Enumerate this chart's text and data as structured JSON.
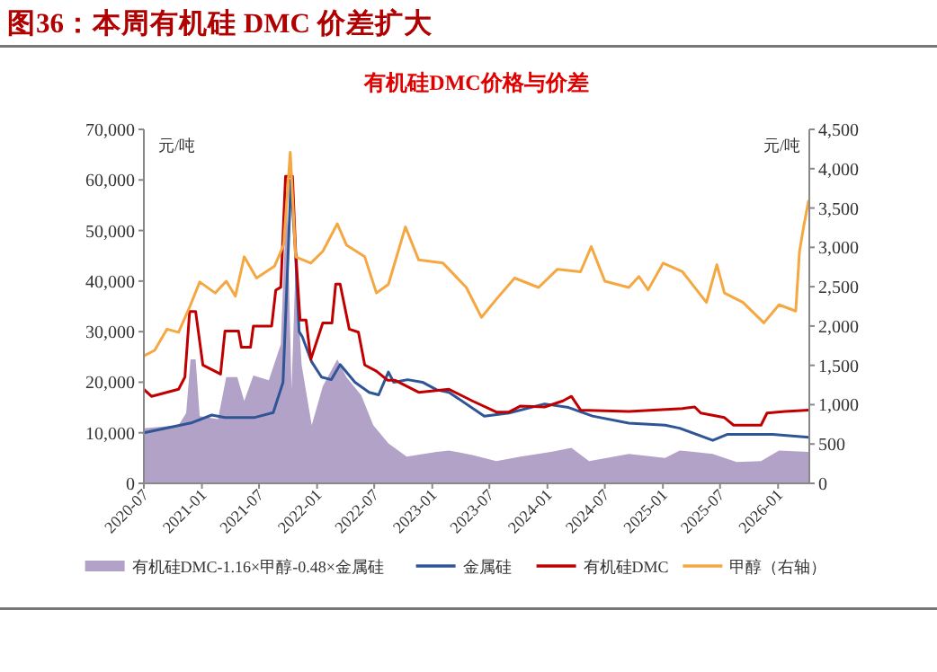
{
  "chart_data": {
    "type": "line",
    "title": "图36：本周有机硅 DMC 价差扩大",
    "subtitle": "有机硅DMC价格与价差",
    "ylabel": "元/吨",
    "y2label": "元/吨",
    "xlim": [
      "2020-07-01",
      "2026-04-10"
    ],
    "xticks": [
      {
        "value": "2020-07-01",
        "label": "2020-07"
      },
      {
        "value": "2021-01-01",
        "label": "2021-01"
      },
      {
        "value": "2021-07-01",
        "label": "2021-07"
      },
      {
        "value": "2022-01-01",
        "label": "2022-01"
      },
      {
        "value": "2022-07-01",
        "label": "2022-07"
      },
      {
        "value": "2023-01-01",
        "label": "2023-01"
      },
      {
        "value": "2023-07-01",
        "label": "2023-07"
      },
      {
        "value": "2024-01-01",
        "label": "2024-01"
      },
      {
        "value": "2024-07-01",
        "label": "2024-07"
      },
      {
        "value": "2025-01-01",
        "label": "2025-01"
      },
      {
        "value": "2025-07-01",
        "label": "2025-07"
      },
      {
        "value": "2026-01-01",
        "label": "2026-01"
      }
    ],
    "ylim": [
      0,
      70000
    ],
    "yticks": [
      0,
      {
        "value": 10000,
        "label": "10,000"
      },
      {
        "value": 20000,
        "label": "20,000"
      },
      {
        "value": 30000,
        "label": "30,000"
      },
      {
        "value": 40000,
        "label": "40,000"
      },
      {
        "value": 50000,
        "label": "50,000"
      },
      {
        "value": 60000,
        "label": "60,000"
      },
      {
        "value": 70000,
        "label": "70,000"
      }
    ],
    "y2lim": [
      0,
      4500
    ],
    "y2ticks": [
      0,
      500,
      {
        "value": 1000,
        "label": "1,000"
      },
      {
        "value": 1500,
        "label": "1,500"
      },
      {
        "value": 2000,
        "label": "2,000"
      },
      {
        "value": 2500,
        "label": "2,500"
      },
      {
        "value": 3000,
        "label": "3,000"
      },
      {
        "value": 3500,
        "label": "3,500"
      },
      {
        "value": 4000,
        "label": "4,000"
      },
      {
        "value": 4500,
        "label": "4,500"
      }
    ],
    "legend": "bottom",
    "grid": false,
    "series": [
      {
        "name": "有机硅DMC-1.16×甲醇-0.48×金属硅",
        "type": "area",
        "color": "#b3a2c7",
        "x": [
          "2020-07-01",
          "2020-10-19",
          "2020-11-12",
          "2020-11-26",
          "2020-12-12",
          "2020-12-25",
          "2021-02-21",
          "2021-03-19",
          "2021-04-23",
          "2021-05-15",
          "2021-06-13",
          "2021-08-01",
          "2021-09-08",
          "2021-09-27",
          "2021-10-12",
          "2021-10-25",
          "2021-11-13",
          "2021-12-15",
          "2022-01-19",
          "2022-03-06",
          "2022-04-04",
          "2022-05-21",
          "2022-06-28",
          "2022-08-15",
          "2022-10-12",
          "2023-01-15",
          "2023-02-23",
          "2023-05-08",
          "2023-07-23",
          "2023-10-08",
          "2024-01-12",
          "2024-03-17",
          "2024-05-12",
          "2024-09-15",
          "2025-01-08",
          "2025-02-23",
          "2025-06-08",
          "2025-08-23",
          "2025-11-08",
          "2026-01-04",
          "2026-04-08"
        ],
        "values": [
          10900,
          11500,
          13900,
          24500,
          24500,
          13300,
          12700,
          21000,
          21000,
          16300,
          21300,
          20400,
          27500,
          57800,
          18600,
          43500,
          23400,
          11500,
          19200,
          24500,
          21000,
          17400,
          11500,
          7900,
          5300,
          6200,
          6500,
          5600,
          4400,
          5300,
          6200,
          7000,
          4400,
          5800,
          5000,
          6500,
          5800,
          4200,
          4400,
          6500,
          6200
        ]
      },
      {
        "name": "金属硅",
        "type": "line",
        "color": "#2f5597",
        "x": [
          "2020-07-01",
          "2020-12-01",
          "2021-02-01",
          "2021-03-15",
          "2021-06-15",
          "2021-08-15",
          "2021-09-15",
          "2021-10-01",
          "2021-10-10",
          "2021-10-25",
          "2021-11-05",
          "2021-11-15",
          "2021-12-15",
          "2022-01-15",
          "2022-02-15",
          "2022-03-15",
          "2022-05-01",
          "2022-06-15",
          "2022-07-15",
          "2022-08-15",
          "2022-09-01",
          "2022-10-15",
          "2022-12-01",
          "2023-01-15",
          "2023-02-23",
          "2023-06-15",
          "2023-09-01",
          "2023-12-23",
          "2024-03-08",
          "2024-05-23",
          "2024-09-15",
          "2025-01-08",
          "2025-02-23",
          "2025-06-08",
          "2025-07-25",
          "2025-12-15",
          "2026-04-08"
        ],
        "values": [
          10000,
          12000,
          13500,
          13000,
          13000,
          14000,
          20000,
          45000,
          60000,
          45000,
          30000,
          29000,
          24000,
          21000,
          20500,
          23500,
          20000,
          18000,
          17500,
          22000,
          20000,
          20500,
          20000,
          18500,
          18000,
          13300,
          13900,
          15700,
          15000,
          13300,
          11900,
          11500,
          10900,
          8500,
          9700,
          9700,
          9100
        ]
      },
      {
        "name": "有机硅DMC",
        "type": "line",
        "color": "#c00000",
        "x": [
          "2020-07-01",
          "2020-07-25",
          "2020-10-19",
          "2020-11-08",
          "2020-11-23",
          "2020-12-12",
          "2021-01-04",
          "2021-03-01",
          "2021-03-15",
          "2021-04-27",
          "2021-05-06",
          "2021-06-04",
          "2021-06-13",
          "2021-08-10",
          "2021-08-23",
          "2021-09-08",
          "2021-09-23",
          "2021-10-15",
          "2021-10-25",
          "2021-11-08",
          "2021-11-27",
          "2021-12-12",
          "2022-01-19",
          "2022-02-17",
          "2022-03-01",
          "2022-03-15",
          "2022-04-13",
          "2022-05-12",
          "2022-06-01",
          "2022-07-08",
          "2022-08-12",
          "2022-09-04",
          "2022-11-19",
          "2023-02-23",
          "2023-05-08",
          "2023-07-23",
          "2023-09-01",
          "2023-10-08",
          "2023-12-23",
          "2024-02-19",
          "2024-03-17",
          "2024-04-15",
          "2024-09-15",
          "2025-03-04",
          "2025-04-12",
          "2025-05-01",
          "2025-07-15",
          "2025-08-13",
          "2025-11-08",
          "2025-11-27",
          "2026-01-23",
          "2026-04-08"
        ],
        "values": [
          18600,
          17200,
          18600,
          21000,
          34000,
          34000,
          23400,
          21600,
          30100,
          30100,
          26900,
          26900,
          31100,
          31100,
          38200,
          38800,
          60700,
          60700,
          45900,
          32300,
          32300,
          24500,
          31700,
          31700,
          39400,
          39400,
          30500,
          29900,
          23400,
          22200,
          20400,
          20400,
          18000,
          18600,
          16300,
          14100,
          14100,
          15300,
          15100,
          16300,
          17200,
          14500,
          14200,
          14800,
          15100,
          13900,
          13000,
          11500,
          11500,
          13900,
          14200,
          14500
        ]
      },
      {
        "name": "甲醇（右轴）",
        "type": "line",
        "axis": "y2",
        "color": "#f5a742",
        "x": [
          "2020-07-01",
          "2020-08-04",
          "2020-09-12",
          "2020-10-19",
          "2020-11-26",
          "2020-12-25",
          "2021-02-12",
          "2021-03-19",
          "2021-04-17",
          "2021-05-15",
          "2021-06-23",
          "2021-08-19",
          "2021-09-17",
          "2021-10-08",
          "2021-10-25",
          "2021-12-12",
          "2022-01-19",
          "2022-03-06",
          "2022-04-04",
          "2022-06-01",
          "2022-07-08",
          "2022-08-15",
          "2022-10-08",
          "2022-11-19",
          "2023-02-04",
          "2023-04-19",
          "2023-06-06",
          "2023-07-23",
          "2023-09-19",
          "2023-12-04",
          "2024-02-01",
          "2024-04-15",
          "2024-05-19",
          "2024-07-01",
          "2024-09-15",
          "2024-10-17",
          "2024-11-15",
          "2025-01-02",
          "2025-03-04",
          "2025-05-19",
          "2025-06-21",
          "2025-07-15",
          "2025-09-12",
          "2025-11-17",
          "2026-01-04",
          "2026-02-26",
          "2026-03-10",
          "2026-03-23",
          "2026-04-08"
        ],
        "values": [
          1620,
          1690,
          1960,
          1920,
          2270,
          2560,
          2420,
          2570,
          2380,
          2880,
          2610,
          2760,
          3030,
          4210,
          2880,
          2800,
          2950,
          3300,
          3030,
          2880,
          2420,
          2530,
          3260,
          2840,
          2800,
          2490,
          2110,
          2340,
          2610,
          2490,
          2720,
          2690,
          3010,
          2570,
          2490,
          2630,
          2460,
          2800,
          2690,
          2300,
          2780,
          2420,
          2300,
          2040,
          2270,
          2190,
          2950,
          3260,
          3600
        ]
      }
    ]
  }
}
